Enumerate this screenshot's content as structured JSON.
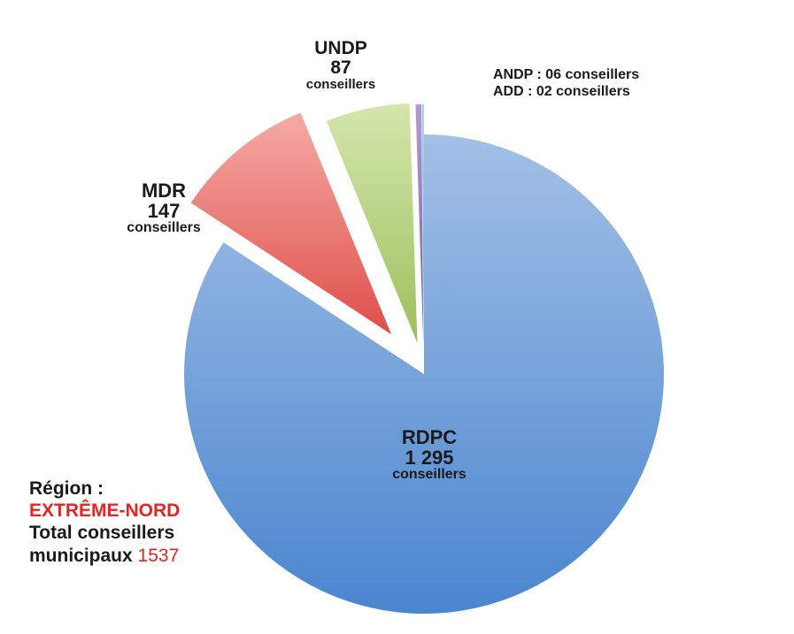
{
  "chart_data": {
    "type": "pie",
    "slices": [
      {
        "name": "RDPC",
        "value": 1295,
        "value_label": "1 295",
        "unit": "conseillers",
        "color": "#6f9fd8",
        "exploded": false
      },
      {
        "name": "MDR",
        "value": 147,
        "value_label": "147",
        "unit": "conseillers",
        "color": "#e8625c",
        "exploded": true
      },
      {
        "name": "UNDP",
        "value": 87,
        "value_label": "87",
        "unit": "conseillers",
        "color": "#a9c96a",
        "exploded": true
      },
      {
        "name": "ANDP",
        "value": 6,
        "value_label": "06",
        "unit": "conseillers",
        "color": "#8d6db8",
        "exploded": true
      },
      {
        "name": "ADD",
        "value": 2,
        "value_label": "02",
        "unit": "conseillers",
        "color": "#4bacc6",
        "exploded": true
      }
    ],
    "notes": [
      "ANDP : 06 conseillers",
      "ADD : 02 conseillers"
    ],
    "region": {
      "label": "Région :",
      "name": "EXTRÊME-NORD",
      "total_label_1": "Total conseillers",
      "total_label_2": "municipaux",
      "total_value": "1537"
    }
  }
}
